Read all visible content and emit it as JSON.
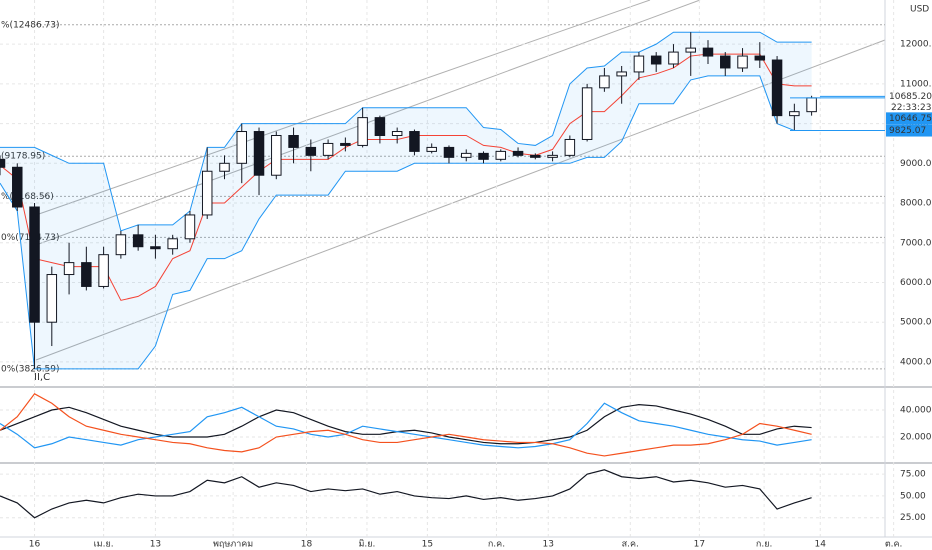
{
  "chart_data": [
    {
      "type": "candlestick",
      "currency": "USD",
      "watermark": "II,C",
      "x": [
        -8,
        -4,
        0,
        4,
        8,
        12,
        16,
        20,
        24,
        28,
        32,
        36,
        40,
        44,
        48,
        52,
        56,
        60,
        64,
        68,
        72,
        76,
        80,
        84,
        88,
        92,
        96,
        100,
        104,
        108,
        112,
        116,
        120,
        124,
        128,
        132,
        136,
        140,
        144,
        148,
        152,
        156,
        160,
        164,
        168,
        172,
        176,
        180
      ],
      "open": [
        9100,
        8900,
        7900,
        5000,
        6200,
        6500,
        5900,
        6700,
        7200,
        6900,
        6850,
        7100,
        7700,
        8800,
        9000,
        9800,
        8700,
        9700,
        9400,
        9200,
        9500,
        9450,
        10150,
        9700,
        9800,
        9300,
        9400,
        9150,
        9250,
        9100,
        9300,
        9200,
        9150,
        9200,
        9600,
        10900,
        11200,
        11300,
        11700,
        11500,
        11800,
        11900,
        11700,
        11400,
        11700,
        11600,
        10200,
        10300
      ],
      "high": [
        9200,
        9000,
        8000,
        6400,
        7000,
        6900,
        6900,
        7300,
        7450,
        7200,
        7200,
        7800,
        9400,
        9200,
        10000,
        9900,
        9800,
        9900,
        9600,
        9600,
        9650,
        10400,
        10200,
        9900,
        9850,
        9500,
        9450,
        9350,
        9300,
        9350,
        9400,
        9250,
        9300,
        9700,
        11000,
        11400,
        11450,
        11800,
        11800,
        12000,
        12300,
        12100,
        11800,
        11900,
        12050,
        11700,
        10500,
        10700
      ],
      "low": [
        8700,
        7800,
        3826,
        4400,
        5700,
        5800,
        5850,
        6600,
        6800,
        6600,
        6700,
        7000,
        7600,
        8600,
        8500,
        8200,
        8600,
        9000,
        8800,
        9100,
        9300,
        9400,
        9500,
        9500,
        9200,
        9250,
        9000,
        9050,
        9000,
        9050,
        9150,
        9100,
        9050,
        9150,
        9550,
        10800,
        10500,
        11100,
        11300,
        11400,
        11200,
        11500,
        11200,
        11300,
        11400,
        10000,
        9825,
        10200
      ],
      "close": [
        8900,
        7900,
        5000,
        6200,
        6500,
        5900,
        6700,
        7200,
        6900,
        6850,
        7100,
        7700,
        8800,
        9000,
        9800,
        8700,
        9700,
        9400,
        9200,
        9500,
        9450,
        10150,
        9700,
        9800,
        9300,
        9400,
        9150,
        9250,
        9100,
        9300,
        9200,
        9150,
        9200,
        9600,
        10900,
        11200,
        11300,
        11700,
        11500,
        11800,
        11900,
        11700,
        11400,
        11700,
        11600,
        10200,
        10300,
        10646.75
      ],
      "up_color": "#ffffff",
      "down_color": "#131722",
      "bands": [
        {
          "color": "#2196f3",
          "values": [
            9400,
            9400,
            9400,
            9200,
            9000,
            9000,
            9000,
            7300,
            7450,
            7450,
            7450,
            7800,
            9400,
            9400,
            10000,
            10000,
            10000,
            10000,
            10000,
            10000,
            10000,
            10400,
            10400,
            10400,
            10400,
            10400,
            10400,
            10400,
            9900,
            9850,
            9500,
            9450,
            9700,
            11000,
            11400,
            11450,
            11800,
            11800,
            12000,
            12300,
            12300,
            12300,
            12300,
            12300,
            12300,
            12050,
            12050,
            12050
          ]
        },
        {
          "color": "#2196f3",
          "values": [
            8500,
            7800,
            3826,
            3826,
            3826,
            3826,
            3826,
            3826,
            3826,
            4400,
            5700,
            5800,
            6600,
            6600,
            6800,
            7600,
            8200,
            8200,
            8200,
            8200,
            8800,
            8800,
            8800,
            8800,
            9000,
            9000,
            9000,
            9000,
            9000,
            9000,
            9000,
            9000,
            9000,
            9000,
            9150,
            9150,
            9550,
            10500,
            10500,
            10500,
            11100,
            11200,
            11200,
            11200,
            11200,
            10000,
            9825,
            9825
          ]
        },
        {
          "color": "#f44336",
          "values": [
            8950,
            8600,
            6600,
            6500,
            6400,
            6400,
            6400,
            5550,
            5650,
            5900,
            6600,
            6800,
            8000,
            8000,
            8400,
            8800,
            9100,
            9100,
            9100,
            9100,
            9400,
            9600,
            9600,
            9600,
            9700,
            9700,
            9700,
            9700,
            9450,
            9400,
            9250,
            9200,
            9350,
            10000,
            10300,
            10300,
            10700,
            11150,
            11250,
            11400,
            11700,
            11750,
            11750,
            11750,
            11750,
            11000,
            10950,
            10950
          ]
        }
      ],
      "fib_levels": [
        {
          "value": 12486.73,
          "label": "%(12486.73)"
        },
        {
          "value": 9178.95,
          "label": "(9178.95)"
        },
        {
          "value": 8168.56,
          "label": "%(8168.56)"
        },
        {
          "value": 7134.73,
          "label": "0%(7134.73)"
        },
        {
          "value": 3826.59,
          "label": "0%(3826.59)"
        }
      ],
      "price_labels": [
        {
          "value": 10685.2,
          "label": "10685.20"
        },
        {
          "value": 10646.75,
          "label": "10646.75"
        },
        {
          "value": 9825.07,
          "label": "9825.07"
        }
      ],
      "countdown": "22:33:23",
      "xlim": [
        -8,
        197
      ],
      "xticks": [
        {
          "value": 0,
          "label": "16"
        },
        {
          "value": 16,
          "label": "เม.ย."
        },
        {
          "value": 28,
          "label": "13"
        },
        {
          "value": 46,
          "label": "พฤษภาคม"
        },
        {
          "value": 63,
          "label": "18"
        },
        {
          "value": 77,
          "label": "มิ.ย."
        },
        {
          "value": 91,
          "label": "15"
        },
        {
          "value": 107,
          "label": "ก.ค."
        },
        {
          "value": 119,
          "label": "13"
        },
        {
          "value": 138,
          "label": "ส.ค."
        },
        {
          "value": 154,
          "label": "17"
        },
        {
          "value": 169,
          "label": "ก.ย."
        },
        {
          "value": 182,
          "label": "14"
        },
        {
          "value": 199,
          "label": "ต.ค."
        }
      ],
      "ylim": [
        3394,
        13111
      ],
      "yticks": [
        {
          "value": 4000,
          "label": "4000.00"
        },
        {
          "value": 5000,
          "label": "5000.00"
        },
        {
          "value": 6000,
          "label": "6000.00"
        },
        {
          "value": 7000,
          "label": "7000.00"
        },
        {
          "value": 8000,
          "label": "8000.00"
        },
        {
          "value": 9000,
          "label": "9000.00"
        },
        {
          "value": 10000,
          "label": "10000.00"
        },
        {
          "value": 11000,
          "label": "11000.00"
        },
        {
          "value": 12000,
          "label": "12000.00"
        }
      ],
      "grid": true
    },
    {
      "type": "line",
      "series": [
        {
          "color": "#131722",
          "values": [
            25,
            30,
            35,
            40,
            42,
            38,
            33,
            28,
            25,
            22,
            20,
            20,
            20,
            22,
            28,
            35,
            40,
            38,
            33,
            28,
            24,
            22,
            22,
            24,
            25,
            23,
            20,
            18,
            16,
            15,
            15,
            16,
            18,
            20,
            25,
            35,
            42,
            44,
            43,
            40,
            37,
            33,
            28,
            22,
            22,
            26,
            28,
            27
          ]
        },
        {
          "color": "#2196f3",
          "values": [
            30,
            22,
            12,
            15,
            20,
            18,
            16,
            14,
            18,
            20,
            22,
            24,
            35,
            38,
            42,
            35,
            28,
            26,
            22,
            20,
            22,
            28,
            26,
            24,
            22,
            20,
            18,
            16,
            14,
            13,
            12,
            13,
            15,
            18,
            30,
            45,
            38,
            32,
            30,
            28,
            25,
            22,
            20,
            18,
            17,
            14,
            16,
            18
          ]
        },
        {
          "color": "#f4511e",
          "values": [
            25,
            35,
            52,
            45,
            35,
            28,
            25,
            22,
            20,
            18,
            16,
            15,
            12,
            10,
            9,
            12,
            20,
            22,
            24,
            25,
            22,
            18,
            16,
            16,
            18,
            20,
            22,
            20,
            18,
            17,
            16,
            16,
            15,
            12,
            8,
            6,
            8,
            10,
            12,
            14,
            14,
            15,
            18,
            22,
            30,
            28,
            25,
            22
          ]
        }
      ],
      "ylim": [
        1.5,
        56.3
      ],
      "yticks": [
        {
          "value": 40,
          "label": "40.0000"
        },
        {
          "value": 20,
          "label": "20.0000"
        }
      ],
      "grid": true
    },
    {
      "type": "line",
      "series": [
        {
          "color": "#131722",
          "values": [
            50,
            42,
            25,
            35,
            42,
            45,
            42,
            48,
            52,
            50,
            50,
            55,
            68,
            65,
            72,
            60,
            65,
            62,
            55,
            58,
            56,
            58,
            52,
            55,
            50,
            48,
            47,
            50,
            46,
            48,
            45,
            47,
            50,
            58,
            75,
            80,
            72,
            70,
            72,
            66,
            68,
            65,
            60,
            62,
            58,
            35,
            42,
            48
          ]
        }
      ],
      "ylim": [
        2.9,
        86.6
      ],
      "yticks": [
        {
          "value": 75,
          "label": "75.00"
        },
        {
          "value": 50,
          "label": "50.00"
        },
        {
          "value": 25,
          "label": "25.00"
        }
      ],
      "grid": true
    }
  ]
}
